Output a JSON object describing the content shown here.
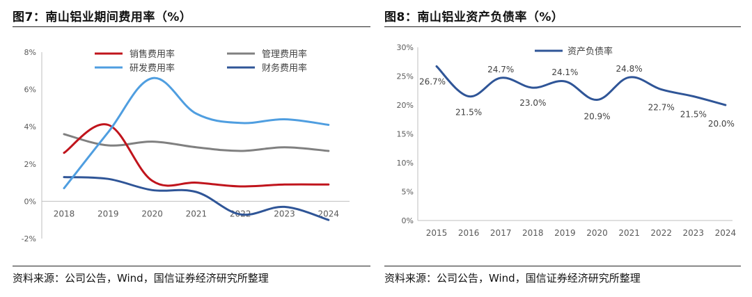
{
  "left": {
    "title": "图7：南山铝业期间费用率（%）",
    "source": "资料来源：公司公告，Wind，国信证券经济研究所整理"
  },
  "right": {
    "title": "图8：南山铝业资产负债率（%）",
    "source": "资料来源：公司公告，Wind，国信证券经济研究所整理"
  },
  "chart_data": [
    {
      "type": "line",
      "title": "南山铝业期间费用率（%）",
      "xlabel": "",
      "ylabel": "",
      "categories": [
        "2018",
        "2019",
        "2020",
        "2021",
        "2022",
        "2023",
        "2024"
      ],
      "y_ticks": [
        "8%",
        "6%",
        "4%",
        "2%",
        "0%",
        "-2%"
      ],
      "ylim": [
        -2,
        8
      ],
      "grid": false,
      "legend_position": "top",
      "series": [
        {
          "name": "销售费用率",
          "color": "#c0141c",
          "values": [
            2.6,
            4.1,
            1.1,
            1.0,
            0.8,
            0.9,
            0.9
          ]
        },
        {
          "name": "管理费用率",
          "color": "#808080",
          "values": [
            3.6,
            3.0,
            3.2,
            2.9,
            2.7,
            2.9,
            2.7
          ]
        },
        {
          "name": "研发费用率",
          "color": "#4f9ee0",
          "values": [
            0.7,
            3.7,
            6.6,
            4.7,
            4.2,
            4.4,
            4.1
          ]
        },
        {
          "name": "财务费用率",
          "color": "#2f5597",
          "values": [
            1.3,
            1.2,
            0.6,
            0.5,
            -0.7,
            -0.3,
            -1.0
          ]
        }
      ]
    },
    {
      "type": "line",
      "title": "南山铝业资产负债率（%）",
      "xlabel": "",
      "ylabel": "",
      "categories": [
        "2015",
        "2016",
        "2017",
        "2018",
        "2019",
        "2020",
        "2021",
        "2022",
        "2023",
        "2024"
      ],
      "y_ticks": [
        "30%",
        "25%",
        "20%",
        "15%",
        "10%",
        "5%",
        "0%"
      ],
      "ylim": [
        0,
        30
      ],
      "grid": false,
      "legend_position": "top-left",
      "series": [
        {
          "name": "资产负债率",
          "color": "#2f5597",
          "values": [
            26.7,
            21.5,
            24.7,
            23.0,
            24.1,
            20.9,
            24.8,
            22.7,
            21.5,
            20.0
          ],
          "data_labels": [
            "26.7%",
            "21.5%",
            "24.7%",
            "23.0%",
            "24.1%",
            "20.9%",
            "24.8%",
            "22.7%",
            "21.5%",
            "20.0%"
          ]
        }
      ]
    }
  ]
}
